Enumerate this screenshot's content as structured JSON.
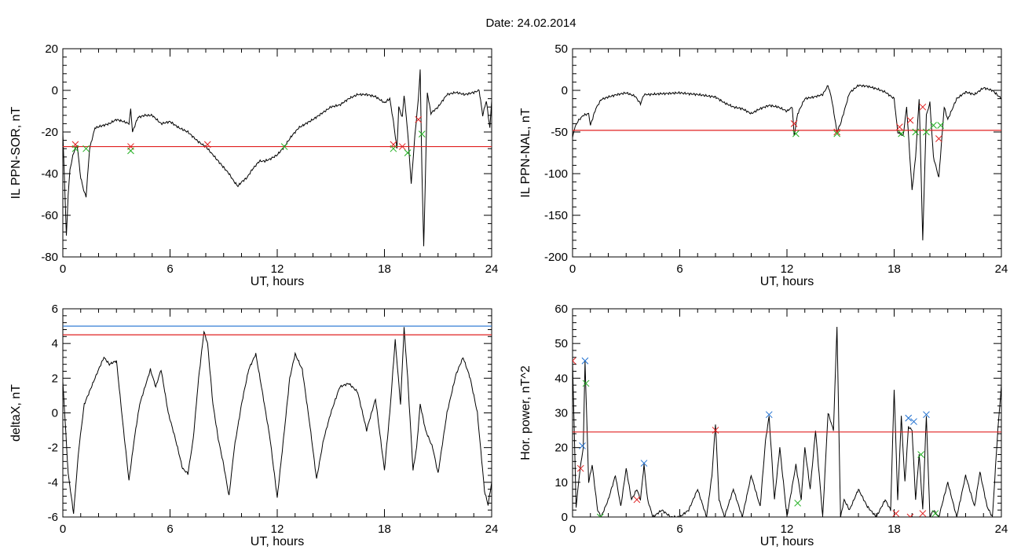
{
  "figure": {
    "title": "Date:  24.02.2014"
  },
  "colors": {
    "data_line": "#000000",
    "selected_line": "#1060c8",
    "threshold_red": "#e02020",
    "threshold_blue": "#1e6fd0",
    "marker_red": "#e02020",
    "marker_green": "#22b022",
    "marker_blue": "#1e6fd0"
  },
  "chart_data": [
    {
      "id": "il-sor",
      "type": "line",
      "xlabel": "UT, hours",
      "ylabel": "IL PPN-SOR, nT",
      "xlim": [
        0,
        24
      ],
      "ylim": [
        -80,
        20
      ],
      "xticks": [
        "0",
        "6",
        "12",
        "18",
        "24"
      ],
      "yticks": [
        "-80",
        "-60",
        "-40",
        "-20",
        "0",
        "20"
      ],
      "ytick_values": [
        -80,
        -60,
        -40,
        -20,
        0,
        20
      ],
      "thresholds": [
        {
          "value": -27,
          "color": "red"
        }
      ],
      "series": [
        {
          "x": [
            0,
            0.1,
            0.2,
            0.3,
            0.4,
            0.6,
            0.8,
            1.0,
            1.2,
            1.3,
            1.5,
            1.8,
            2.2,
            2.6,
            3.0,
            3.4,
            3.7,
            3.8,
            3.9,
            4.2,
            4.6,
            5.0,
            5.5,
            6.0,
            6.5,
            7.0,
            7.5,
            7.8,
            8.0,
            8.3,
            8.6,
            9.0,
            9.3,
            9.6,
            9.8,
            10.0,
            10.3,
            10.6,
            11.0,
            11.3,
            11.6,
            12.0,
            12.4,
            12.8,
            13.2,
            13.6,
            14.0,
            14.5,
            15.0,
            15.5,
            16.0,
            16.5,
            17.0,
            17.5,
            18.0,
            18.3,
            18.5,
            18.7,
            18.8,
            19.0,
            19.1,
            19.3,
            19.5,
            19.7,
            19.9,
            20.0,
            20.1,
            20.2,
            20.4,
            20.6,
            21.0,
            21.5,
            22.0,
            22.5,
            23.0,
            23.3,
            23.5,
            23.7,
            23.9,
            24.0
          ],
          "y": [
            -20,
            -45,
            -70,
            -50,
            -38,
            -30,
            -26,
            -42,
            -49,
            -51,
            -28,
            -18,
            -17,
            -16,
            -14,
            -15,
            -16,
            -9,
            -20,
            -13,
            -12,
            -12,
            -16,
            -15,
            -18,
            -20,
            -24,
            -26,
            -27,
            -30,
            -33,
            -37,
            -40,
            -44,
            -46,
            -44,
            -42,
            -38,
            -34,
            -34,
            -33,
            -31,
            -27,
            -22,
            -18,
            -16,
            -14,
            -11,
            -8,
            -7,
            -4,
            -2,
            -2,
            -3,
            -6,
            -4,
            -15,
            -28,
            -8,
            -13,
            -2,
            -20,
            -45,
            -22,
            -4,
            10,
            -40,
            -75,
            -1,
            -11,
            -8,
            -2,
            -1,
            -2,
            -1,
            0,
            -12,
            -5,
            -18,
            -5
          ]
        }
      ],
      "markers": [
        {
          "x": 0.7,
          "y": -26,
          "color": "red"
        },
        {
          "x": 0.7,
          "y": -28,
          "color": "green"
        },
        {
          "x": 1.3,
          "y": -28,
          "color": "green"
        },
        {
          "x": 3.8,
          "y": -27,
          "color": "red"
        },
        {
          "x": 3.8,
          "y": -29,
          "color": "green"
        },
        {
          "x": 8.1,
          "y": -26,
          "color": "red"
        },
        {
          "x": 12.4,
          "y": -27,
          "color": "green"
        },
        {
          "x": 18.5,
          "y": -26,
          "color": "red"
        },
        {
          "x": 18.5,
          "y": -28,
          "color": "green"
        },
        {
          "x": 19.0,
          "y": -27,
          "color": "red"
        },
        {
          "x": 19.3,
          "y": -30,
          "color": "green"
        },
        {
          "x": 19.9,
          "y": -14,
          "color": "red"
        },
        {
          "x": 20.1,
          "y": -21,
          "color": "green"
        }
      ]
    },
    {
      "id": "il-nal",
      "type": "line",
      "xlabel": "UT, hours",
      "ylabel": "IL PPN-NAL, nT",
      "xlim": [
        0,
        24
      ],
      "ylim": [
        -200,
        50
      ],
      "xticks": [
        "0",
        "6",
        "12",
        "18",
        "24"
      ],
      "yticks": [
        "-200",
        "-150",
        "-100",
        "-50",
        "0",
        "50"
      ],
      "ytick_values": [
        -200,
        -150,
        -100,
        -50,
        0,
        50
      ],
      "thresholds": [
        {
          "value": -48,
          "color": "red"
        }
      ],
      "series": [
        {
          "x": [
            0,
            0.1,
            0.3,
            0.6,
            0.9,
            1.0,
            1.3,
            1.6,
            2.0,
            2.5,
            3.0,
            3.5,
            3.8,
            4.0,
            4.3,
            5.0,
            6.0,
            7.0,
            8.0,
            8.5,
            9.0,
            9.5,
            10.0,
            10.5,
            11.0,
            11.5,
            12.0,
            12.3,
            12.4,
            12.6,
            13.0,
            13.5,
            14.0,
            14.3,
            14.5,
            14.8,
            15.0,
            15.5,
            16.0,
            16.5,
            17.0,
            17.5,
            18.0,
            18.2,
            18.5,
            18.7,
            19.0,
            19.2,
            19.4,
            19.6,
            19.8,
            20.0,
            20.2,
            20.5,
            20.8,
            21.0,
            21.5,
            22.0,
            22.5,
            23.0,
            23.5,
            24.0
          ],
          "y": [
            -58,
            -46,
            -37,
            -30,
            -28,
            -42,
            -22,
            -11,
            -8,
            -5,
            -3,
            -7,
            -16,
            -5,
            -5,
            -4,
            -3,
            -5,
            -8,
            -15,
            -20,
            -22,
            -28,
            -22,
            -18,
            -20,
            -25,
            -20,
            -55,
            -28,
            -10,
            -8,
            -5,
            6,
            -10,
            -50,
            -40,
            -3,
            6,
            5,
            2,
            -2,
            -10,
            -50,
            -55,
            -20,
            -120,
            -80,
            -10,
            -180,
            -30,
            -15,
            -80,
            -105,
            -20,
            -35,
            -10,
            -2,
            -5,
            3,
            0,
            -10
          ]
        }
      ],
      "markers": [
        {
          "x": 12.4,
          "y": -40,
          "color": "red"
        },
        {
          "x": 12.5,
          "y": -52,
          "color": "green"
        },
        {
          "x": 14.8,
          "y": -50,
          "color": "red"
        },
        {
          "x": 14.8,
          "y": -52,
          "color": "green"
        },
        {
          "x": 18.3,
          "y": -44,
          "color": "red"
        },
        {
          "x": 18.4,
          "y": -52,
          "color": "green"
        },
        {
          "x": 18.9,
          "y": -36,
          "color": "red"
        },
        {
          "x": 19.2,
          "y": -50,
          "color": "green"
        },
        {
          "x": 19.6,
          "y": -20,
          "color": "red"
        },
        {
          "x": 19.8,
          "y": -50,
          "color": "green"
        },
        {
          "x": 20.2,
          "y": -42,
          "color": "green"
        },
        {
          "x": 20.5,
          "y": -58,
          "color": "red"
        },
        {
          "x": 20.6,
          "y": -42,
          "color": "green"
        }
      ]
    },
    {
      "id": "deltax",
      "type": "line",
      "xlabel": "UT, hours",
      "ylabel": "deltaX, nT",
      "xlim": [
        0,
        24
      ],
      "ylim": [
        -6,
        6
      ],
      "xticks": [
        "0",
        "6",
        "12",
        "18",
        "24"
      ],
      "yticks": [
        "-6",
        "-4",
        "-2",
        "0",
        "2",
        "4",
        "6"
      ],
      "ytick_values": [
        -6,
        -4,
        -2,
        0,
        2,
        4,
        6
      ],
      "thresholds": [
        {
          "value": 5.0,
          "color": "blue"
        },
        {
          "value": 4.5,
          "color": "red"
        }
      ],
      "series": [
        {
          "x": [
            0,
            0.3,
            0.6,
            0.9,
            1.2,
            1.6,
            2.0,
            2.3,
            2.6,
            3.0,
            3.4,
            3.7,
            4.0,
            4.3,
            4.6,
            4.9,
            5.2,
            5.5,
            5.9,
            6.3,
            6.7,
            7.0,
            7.3,
            7.6,
            7.9,
            8.1,
            8.4,
            8.7,
            9.0,
            9.3,
            9.6,
            10.0,
            10.4,
            10.8,
            11.2,
            11.6,
            12.0,
            12.4,
            12.7,
            13.0,
            13.4,
            13.8,
            14.2,
            14.6,
            15.0,
            15.5,
            16.0,
            16.5,
            17.0,
            17.5,
            18.0,
            18.3,
            18.6,
            18.9,
            19.1,
            19.3,
            19.6,
            19.8,
            20.0,
            20.3,
            20.7,
            21.0,
            21.5,
            22.0,
            22.4,
            22.8,
            23.2,
            23.6,
            23.8,
            24.0
          ],
          "y": [
            1.8,
            -3.5,
            -5.8,
            -2.0,
            0.5,
            1.5,
            2.5,
            3.2,
            2.8,
            3.0,
            -1.0,
            -3.9,
            -1.5,
            0.5,
            1.5,
            2.5,
            1.5,
            2.5,
            0.0,
            -1.5,
            -3.2,
            -3.5,
            -1.5,
            2.0,
            4.7,
            4.0,
            0.5,
            -1.5,
            -3.0,
            -4.8,
            -2.0,
            0.5,
            2.5,
            3.4,
            1.0,
            -1.5,
            -4.9,
            -1.0,
            2.0,
            3.4,
            2.5,
            -0.5,
            -3.8,
            -1.5,
            0.0,
            1.5,
            1.7,
            1.2,
            -1.0,
            0.8,
            -3.3,
            0.0,
            4.2,
            0.5,
            4.9,
            2.0,
            -3.3,
            -2.0,
            0.5,
            -1.0,
            -2.0,
            -3.5,
            0.0,
            2.2,
            3.2,
            2.0,
            0.0,
            -4.5,
            -5.3,
            -4.0
          ]
        }
      ],
      "markers": []
    },
    {
      "id": "hor-power",
      "type": "line",
      "xlabel": "UT, hours",
      "ylabel": "Hor. power, nT^2",
      "xlim": [
        0,
        24
      ],
      "ylim": [
        0,
        60
      ],
      "xticks": [
        "0",
        "6",
        "12",
        "18",
        "24"
      ],
      "yticks": [
        "0",
        "10",
        "20",
        "30",
        "40",
        "50",
        "60"
      ],
      "ytick_values": [
        0,
        10,
        20,
        30,
        40,
        50,
        60
      ],
      "thresholds": [
        {
          "value": 24.5,
          "color": "red"
        }
      ],
      "series": [
        {
          "x": [
            0,
            0.2,
            0.4,
            0.6,
            0.7,
            0.9,
            1.1,
            1.4,
            1.6,
            2.0,
            2.4,
            2.7,
            3.0,
            3.3,
            3.6,
            3.8,
            4.0,
            4.2,
            4.5,
            5.0,
            5.5,
            6.0,
            6.5,
            7.0,
            7.5,
            7.8,
            8.0,
            8.2,
            8.5,
            9.0,
            9.5,
            10.0,
            10.5,
            10.8,
            11.0,
            11.3,
            11.6,
            12.0,
            12.5,
            12.8,
            13.0,
            13.3,
            13.6,
            14.0,
            14.3,
            14.6,
            14.8,
            15.0,
            15.2,
            15.5,
            16.0,
            16.5,
            17.0,
            17.5,
            17.8,
            18.0,
            18.2,
            18.4,
            18.6,
            18.8,
            19.0,
            19.2,
            19.4,
            19.6,
            19.8,
            20.0,
            20.2,
            20.5,
            21.0,
            21.5,
            22.0,
            22.5,
            22.8,
            23.2,
            23.5,
            23.8,
            24.0
          ],
          "y": [
            45,
            3,
            13,
            20,
            45,
            10,
            15,
            2,
            0,
            5,
            12,
            3,
            14,
            5,
            8,
            5,
            15,
            5,
            0,
            2,
            0,
            0,
            2,
            8,
            0,
            12,
            27,
            5,
            0,
            8,
            0,
            12,
            3,
            22,
            29,
            5,
            20,
            0,
            15,
            5,
            20,
            8,
            25,
            0,
            30,
            25,
            55,
            0,
            5,
            2,
            8,
            3,
            0,
            5,
            2,
            37,
            5,
            29,
            10,
            26,
            25,
            5,
            18,
            2,
            29,
            0,
            2,
            0,
            10,
            0,
            12,
            3,
            13,
            3,
            0,
            25,
            38
          ]
        }
      ],
      "markers": [
        {
          "x": 0.0,
          "y": 45,
          "color": "red"
        },
        {
          "x": 0.45,
          "y": 14,
          "color": "red"
        },
        {
          "x": 0.55,
          "y": 20.5,
          "color": "blue"
        },
        {
          "x": 0.7,
          "y": 45,
          "color": "blue"
        },
        {
          "x": 0.75,
          "y": 38.5,
          "color": "green"
        },
        {
          "x": 1.55,
          "y": 0,
          "color": "green"
        },
        {
          "x": 3.6,
          "y": 5,
          "color": "red"
        },
        {
          "x": 4.0,
          "y": 15.5,
          "color": "blue"
        },
        {
          "x": 8.0,
          "y": 25,
          "color": "red"
        },
        {
          "x": 11.0,
          "y": 29.5,
          "color": "blue"
        },
        {
          "x": 12.6,
          "y": 4,
          "color": "green"
        },
        {
          "x": 18.1,
          "y": 1,
          "color": "red"
        },
        {
          "x": 18.8,
          "y": 28.5,
          "color": "blue"
        },
        {
          "x": 18.9,
          "y": 0,
          "color": "red"
        },
        {
          "x": 19.1,
          "y": 27.5,
          "color": "blue"
        },
        {
          "x": 19.5,
          "y": 18,
          "color": "green"
        },
        {
          "x": 19.6,
          "y": 1,
          "color": "red"
        },
        {
          "x": 19.8,
          "y": 29.5,
          "color": "blue"
        },
        {
          "x": 20.3,
          "y": 1,
          "color": "green"
        }
      ]
    }
  ]
}
